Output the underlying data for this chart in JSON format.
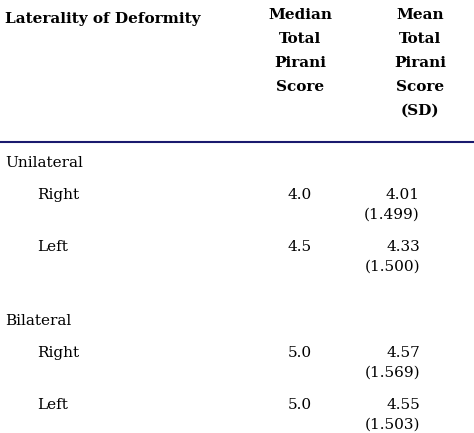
{
  "col_headers": [
    [
      "Laterality of Deformity"
    ],
    [
      "Median",
      "Total",
      "Pirani",
      "Score"
    ],
    [
      "Mean",
      "Total",
      "Pirani",
      "Score",
      "(SD)"
    ]
  ],
  "rows": [
    {
      "label": "Unilateral",
      "indent": false,
      "median": "",
      "mean_val": "",
      "mean_sd": ""
    },
    {
      "label": "Right",
      "indent": true,
      "median": "4.0",
      "mean_val": "4.01",
      "mean_sd": "(1.499)"
    },
    {
      "label": "Left",
      "indent": true,
      "median": "4.5",
      "mean_val": "4.33",
      "mean_sd": "(1.500)"
    },
    {
      "label": "",
      "indent": false,
      "median": "",
      "mean_val": "",
      "mean_sd": ""
    },
    {
      "label": "Bilateral",
      "indent": false,
      "median": "",
      "mean_val": "",
      "mean_sd": ""
    },
    {
      "label": "Right",
      "indent": true,
      "median": "5.0",
      "mean_val": "4.57",
      "mean_sd": "(1.569)"
    },
    {
      "label": "Left",
      "indent": true,
      "median": "5.0",
      "mean_val": "4.55",
      "mean_sd": "(1.503)"
    }
  ],
  "bg_color": "#ffffff",
  "text_color": "#000000",
  "font_family": "serif",
  "header_fontsize": 11.0,
  "body_fontsize": 11.0,
  "fig_width": 4.74,
  "fig_height": 4.33,
  "dpi": 100
}
